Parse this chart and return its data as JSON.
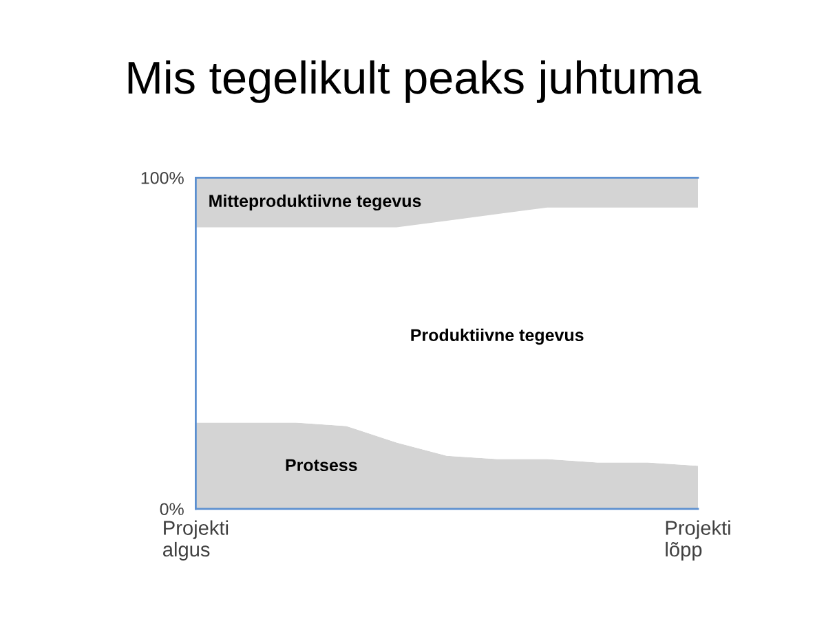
{
  "chart_data": {
    "type": "area",
    "title": "Mis tegelikult peaks juhtuma",
    "stacked": true,
    "categories": [
      "Projekti\nalgus",
      null,
      null,
      null,
      null,
      null,
      null,
      null,
      null,
      null,
      "Projekti\nlõpp"
    ],
    "series": [
      {
        "name": "Protsess",
        "color": "#d4d4d4",
        "values": [
          26,
          26,
          26,
          25,
          20,
          16,
          15,
          15,
          14,
          14,
          13
        ]
      },
      {
        "name": "Produktiivne tegevus",
        "color": "#ffffff",
        "values": [
          59,
          59,
          59,
          60,
          65,
          71,
          74,
          76,
          77,
          77,
          78
        ]
      },
      {
        "name": "Mitteproduktiivne tegevus",
        "color": "#d4d4d4",
        "values": [
          15,
          15,
          15,
          15,
          15,
          13,
          11,
          9,
          9,
          9,
          9
        ]
      }
    ],
    "ylim": [
      0,
      100
    ],
    "yticks": [
      {
        "value": 0,
        "label": "0%"
      },
      {
        "value": 100,
        "label": "100%"
      }
    ]
  }
}
